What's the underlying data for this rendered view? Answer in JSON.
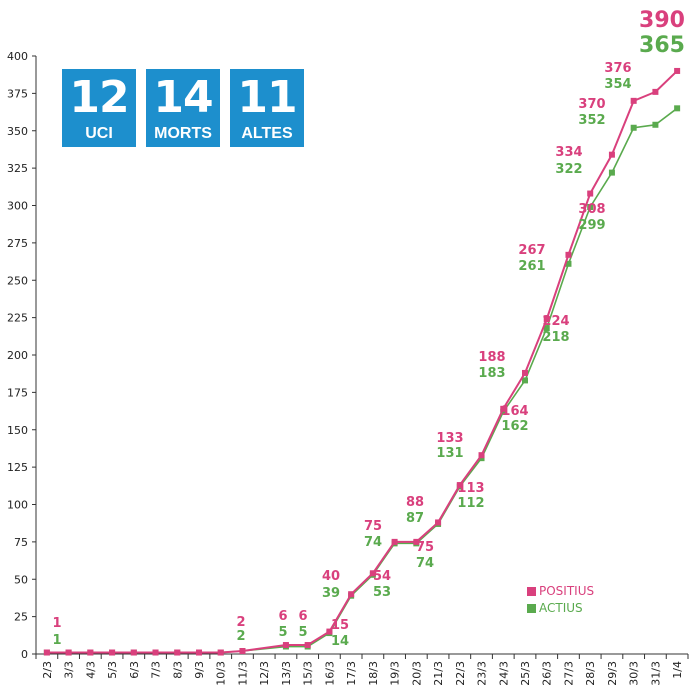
{
  "stats": [
    {
      "value": "12",
      "label": "UCI"
    },
    {
      "value": "14",
      "label": "MORTS"
    },
    {
      "value": "11",
      "label": "ALTES"
    }
  ],
  "chart_data": {
    "type": "line",
    "title": "",
    "xlabel": "",
    "ylabel": "",
    "ylim": [
      0,
      400
    ],
    "yticks": [
      0,
      25,
      50,
      75,
      100,
      125,
      150,
      175,
      200,
      225,
      250,
      275,
      300,
      325,
      350,
      375,
      400
    ],
    "categories": [
      "2/3",
      "3/3",
      "4/3",
      "5/3",
      "6/3",
      "7/3",
      "8/3",
      "9/3",
      "10/3",
      "11/3",
      "12/3",
      "13/3",
      "15/3",
      "16/3",
      "17/3",
      "18/3",
      "19/3",
      "20/3",
      "21/3",
      "22/3",
      "23/3",
      "24/3",
      "25/3",
      "26/3",
      "27/3",
      "28/3",
      "29/3",
      "30/3",
      "31/3",
      "1/4"
    ],
    "series": [
      {
        "name": "POSITIUS",
        "color": "#d9407d",
        "values": [
          1,
          1,
          1,
          1,
          1,
          1,
          1,
          1,
          1,
          2,
          null,
          6,
          6,
          15,
          40,
          54,
          75,
          75,
          88,
          113,
          133,
          164,
          188,
          224,
          267,
          308,
          334,
          370,
          376,
          390
        ]
      },
      {
        "name": "ACTIUS",
        "color": "#5aaa4e",
        "values": [
          1,
          1,
          1,
          1,
          1,
          1,
          1,
          1,
          1,
          2,
          null,
          5,
          5,
          14,
          39,
          53,
          74,
          74,
          87,
          112,
          131,
          162,
          183,
          218,
          261,
          299,
          322,
          352,
          354,
          365
        ]
      }
    ],
    "annotations": [
      {
        "category": "2/3",
        "positius": "1",
        "actius": "1"
      },
      {
        "category": "11/3",
        "positius": "2",
        "actius": "2"
      },
      {
        "category": "13/3",
        "positius": "6",
        "actius": "5"
      },
      {
        "category": "15/3",
        "positius": "6",
        "actius": "5"
      },
      {
        "category": "16/3",
        "positius": "15",
        "actius": "14"
      },
      {
        "category": "17/3",
        "positius": "40",
        "actius": "39"
      },
      {
        "category": "18/3",
        "positius": "54",
        "actius": "53"
      },
      {
        "category": "19/3",
        "positius": "75",
        "actius": "74"
      },
      {
        "category": "20/3",
        "positius": "75",
        "actius": "74"
      },
      {
        "category": "21/3",
        "positius": "88",
        "actius": "87"
      },
      {
        "category": "22/3",
        "positius": "113",
        "actius": "112"
      },
      {
        "category": "23/3",
        "positius": "133",
        "actius": "131"
      },
      {
        "category": "24/3",
        "positius": "164",
        "actius": "162"
      },
      {
        "category": "25/3",
        "positius": "188",
        "actius": "183"
      },
      {
        "category": "26/3",
        "positius": "224",
        "actius": "218"
      },
      {
        "category": "27/3",
        "positius": "267",
        "actius": "261"
      },
      {
        "category": "28/3",
        "positius": "308",
        "actius": "299"
      },
      {
        "category": "29/3",
        "positius": "334",
        "actius": "322"
      },
      {
        "category": "30/3",
        "positius": "370",
        "actius": "352"
      },
      {
        "category": "31/3",
        "positius": "376",
        "actius": "354"
      },
      {
        "category": "1/4",
        "positius": "390",
        "actius": "365"
      }
    ],
    "legend": [
      "POSITIUS",
      "ACTIUS"
    ],
    "legend_position": "bottom-right",
    "grid": false
  }
}
